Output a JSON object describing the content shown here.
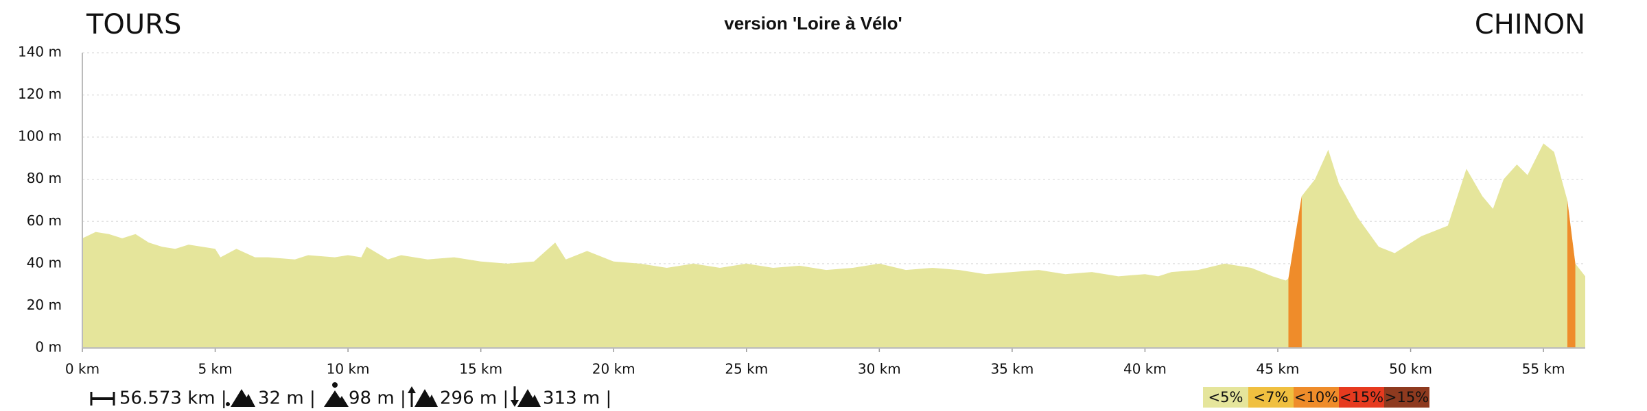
{
  "chart_data": {
    "type": "area",
    "title": "version 'Loire à Vélo'",
    "start_label": "TOURS",
    "end_label": "CHINON",
    "color": "#e5e59b",
    "x": [
      0,
      0.5,
      1,
      1.5,
      2,
      2.5,
      3,
      3.5,
      4,
      5,
      5.2,
      5.8,
      6.5,
      7,
      8,
      8.5,
      9.5,
      10,
      10.5,
      10.7,
      11.5,
      12,
      13,
      14,
      15,
      16,
      17,
      17.8,
      18.2,
      19,
      20,
      21,
      22,
      23,
      24,
      25,
      26,
      27,
      28,
      29,
      30,
      31,
      32,
      33,
      34,
      35,
      36,
      37,
      38,
      39,
      40,
      40.5,
      41,
      42,
      43,
      44,
      44.8,
      45.3,
      45.4,
      45.9,
      46.4,
      46.9,
      47.3,
      48.0,
      48.8,
      49.4,
      50.4,
      51.4,
      52.1,
      52.7,
      53.1,
      53.5,
      54.0,
      54.4,
      55.0,
      55.4,
      55.9,
      56.2,
      56.573
    ],
    "values": [
      52,
      55,
      54,
      52,
      54,
      50,
      48,
      47,
      49,
      47,
      43,
      47,
      43,
      43,
      42,
      44,
      43,
      44,
      43,
      48,
      42,
      44,
      42,
      43,
      41,
      40,
      41,
      50,
      42,
      46,
      41,
      40,
      38,
      40,
      38,
      40,
      38,
      39,
      37,
      38,
      40,
      37,
      38,
      37,
      35,
      36,
      37,
      35,
      36,
      34,
      35,
      34,
      36,
      37,
      40,
      38,
      34,
      32,
      33,
      72,
      80,
      94,
      78,
      62,
      48,
      45,
      53,
      58,
      85,
      72,
      66,
      80,
      87,
      82,
      97,
      93,
      70,
      40,
      34
    ],
    "xlim": [
      0,
      56.573
    ],
    "ylim": [
      0,
      140
    ],
    "xticks": [
      {
        "value": 0,
        "label": "0 km"
      },
      {
        "value": 5,
        "label": "5 km"
      },
      {
        "value": 10,
        "label": "10 km"
      },
      {
        "value": 15,
        "label": "15 km"
      },
      {
        "value": 20,
        "label": "20 km"
      },
      {
        "value": 25,
        "label": "25 km"
      },
      {
        "value": 30,
        "label": "30 km"
      },
      {
        "value": 35,
        "label": "35 km"
      },
      {
        "value": 40,
        "label": "40 km"
      },
      {
        "value": 45,
        "label": "45 km"
      },
      {
        "value": 50,
        "label": "50 km"
      },
      {
        "value": 55,
        "label": "55 km"
      }
    ],
    "yticks": [
      {
        "value": 0,
        "label": "0 m"
      },
      {
        "value": 20,
        "label": "20 m"
      },
      {
        "value": 40,
        "label": "40 m"
      },
      {
        "value": 60,
        "label": "60 m"
      },
      {
        "value": 80,
        "label": "80 m"
      },
      {
        "value": 100,
        "label": "100 m"
      },
      {
        "value": 120,
        "label": "120 m"
      },
      {
        "value": 140,
        "label": "140 m"
      }
    ],
    "grid": true,
    "legend": [
      {
        "label": "<5%",
        "color": "#e5e59b"
      },
      {
        "label": "<7%",
        "color": "#f0c040"
      },
      {
        "label": "<10%",
        "color": "#ef8c2a"
      },
      {
        "label": "<15%",
        "color": "#e63a1f"
      },
      {
        "label": ">15%",
        "color": "#8e3a1f"
      }
    ],
    "stats": [
      "56.573 km |",
      "32 m |",
      "98 m |",
      "296 m |",
      "313 m |"
    ]
  }
}
